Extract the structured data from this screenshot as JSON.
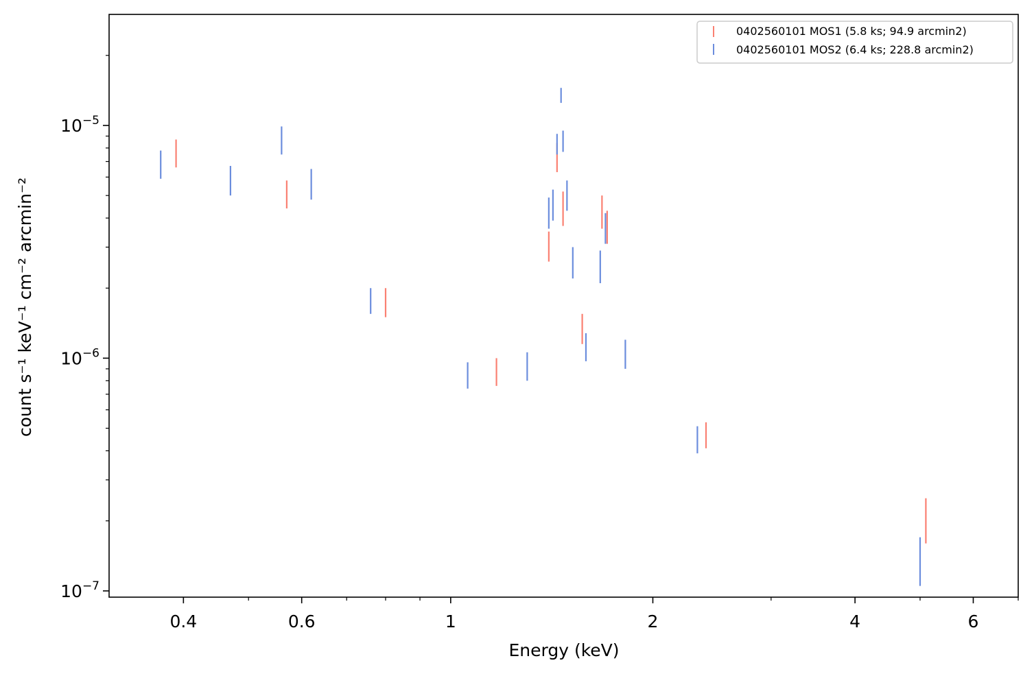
{
  "chart_data": {
    "type": "scatter",
    "title": "",
    "xlabel": "Energy (keV)",
    "ylabel": "count s⁻¹ keV⁻¹ cm⁻² arcmin⁻²",
    "xscale": "log",
    "yscale": "log",
    "xlim": [
      0.31,
      7.0
    ],
    "ylim": [
      9.4e-08,
      3e-05
    ],
    "grid": false,
    "legend_position": "top-right",
    "x_ticks": [
      {
        "value": 0.4,
        "label": "0.4"
      },
      {
        "value": 0.6,
        "label": "0.6"
      },
      {
        "value": 1,
        "label": "1"
      },
      {
        "value": 2,
        "label": "2"
      },
      {
        "value": 4,
        "label": "4"
      },
      {
        "value": 6,
        "label": "6"
      }
    ],
    "y_ticks": [
      {
        "value": 1e-05,
        "base": "10",
        "exp": "−5"
      },
      {
        "value": 1e-06,
        "base": "10",
        "exp": "−6"
      },
      {
        "value": 1e-07,
        "base": "10",
        "exp": "−7"
      }
    ],
    "series": [
      {
        "name": "0402560101 MOS1 (5.8 ks; 94.9 arcmin2)",
        "color": "#fa8072",
        "points": [
          {
            "x": 0.39,
            "ylo": 6.6e-06,
            "yhi": 8.7e-06
          },
          {
            "x": 0.57,
            "ylo": 4.4e-06,
            "yhi": 5.8e-06
          },
          {
            "x": 0.8,
            "ylo": 1.5e-06,
            "yhi": 2e-06
          },
          {
            "x": 1.17,
            "ylo": 7.6e-07,
            "yhi": 1e-06
          },
          {
            "x": 1.4,
            "ylo": 2.6e-06,
            "yhi": 3.5e-06
          },
          {
            "x": 1.44,
            "ylo": 6.3e-06,
            "yhi": 8.4e-06
          },
          {
            "x": 1.47,
            "ylo": 3.7e-06,
            "yhi": 5.2e-06
          },
          {
            "x": 1.57,
            "ylo": 1.15e-06,
            "yhi": 1.55e-06
          },
          {
            "x": 1.68,
            "ylo": 3.6e-06,
            "yhi": 5e-06
          },
          {
            "x": 1.71,
            "ylo": 3.1e-06,
            "yhi": 4.3e-06
          },
          {
            "x": 2.4,
            "ylo": 4.1e-07,
            "yhi": 5.3e-07
          },
          {
            "x": 5.1,
            "ylo": 1.6e-07,
            "yhi": 2.5e-07
          }
        ]
      },
      {
        "name": "0402560101 MOS2 (6.4 ks; 228.8 arcmin2)",
        "color": "#6b8ddd",
        "points": [
          {
            "x": 0.37,
            "ylo": 5.9e-06,
            "yhi": 7.8e-06
          },
          {
            "x": 0.47,
            "ylo": 5e-06,
            "yhi": 6.7e-06
          },
          {
            "x": 0.56,
            "ylo": 7.5e-06,
            "yhi": 9.9e-06
          },
          {
            "x": 0.62,
            "ylo": 4.8e-06,
            "yhi": 6.5e-06
          },
          {
            "x": 0.76,
            "ylo": 1.55e-06,
            "yhi": 2e-06
          },
          {
            "x": 1.06,
            "ylo": 7.4e-07,
            "yhi": 9.6e-07
          },
          {
            "x": 1.3,
            "ylo": 8e-07,
            "yhi": 1.06e-06
          },
          {
            "x": 1.4,
            "ylo": 3.6e-06,
            "yhi": 4.9e-06
          },
          {
            "x": 1.42,
            "ylo": 3.9e-06,
            "yhi": 5.3e-06
          },
          {
            "x": 1.44,
            "ylo": 7.5e-06,
            "yhi": 9.2e-06
          },
          {
            "x": 1.46,
            "ylo": 1.25e-05,
            "yhi": 1.45e-05
          },
          {
            "x": 1.47,
            "ylo": 7.7e-06,
            "yhi": 9.5e-06
          },
          {
            "x": 1.49,
            "ylo": 4.3e-06,
            "yhi": 5.8e-06
          },
          {
            "x": 1.52,
            "ylo": 2.2e-06,
            "yhi": 3e-06
          },
          {
            "x": 1.59,
            "ylo": 9.7e-07,
            "yhi": 1.28e-06
          },
          {
            "x": 1.67,
            "ylo": 2.1e-06,
            "yhi": 2.9e-06
          },
          {
            "x": 1.7,
            "ylo": 3.1e-06,
            "yhi": 4.2e-06
          },
          {
            "x": 1.82,
            "ylo": 9e-07,
            "yhi": 1.2e-06
          },
          {
            "x": 2.33,
            "ylo": 3.9e-07,
            "yhi": 5.1e-07
          },
          {
            "x": 5.0,
            "ylo": 1.05e-07,
            "yhi": 1.7e-07
          }
        ]
      }
    ]
  }
}
